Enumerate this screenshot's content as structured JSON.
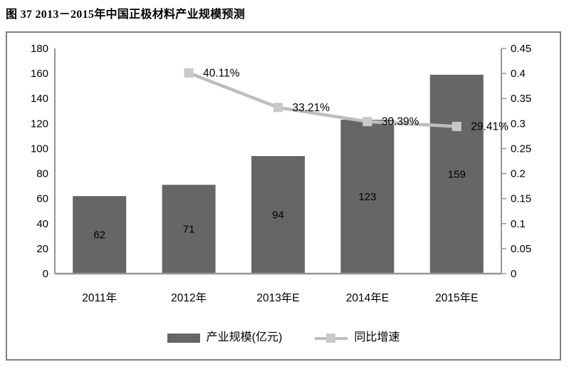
{
  "title": "图 37 2013－2015年中国正极材料产业规模预测",
  "chart_data": {
    "type": "bar+line",
    "categories": [
      "2011年",
      "2012年",
      "2013年E",
      "2014年E",
      "2015年E"
    ],
    "bar_series": {
      "name": "产业规模(亿元)",
      "values": [
        62,
        71,
        94,
        123,
        159
      ],
      "labels": [
        "62",
        "71",
        "94",
        "123",
        "159"
      ],
      "color": "#666666"
    },
    "line_series": {
      "name": "同比增速",
      "values": [
        null,
        0.4011,
        0.3321,
        0.3039,
        0.2941
      ],
      "labels": [
        null,
        "40.11%",
        "33.21%",
        "30.39%",
        "29.41%"
      ],
      "color": "#BDBDBD",
      "marker_color": "#C9C9C9"
    },
    "left_axis": {
      "min": 0,
      "max": 180,
      "step": 20,
      "ticks": [
        "180",
        "160",
        "140",
        "120",
        "100",
        "80",
        "60",
        "40",
        "20",
        "0"
      ]
    },
    "right_axis": {
      "min": 0,
      "max": 0.45,
      "step": 0.05,
      "ticks": [
        "0.45",
        "0.4",
        "0.35",
        "0.3",
        "0.25",
        "0.2",
        "0.15",
        "0.1",
        "0.05",
        "0"
      ]
    },
    "legend_position": "bottom",
    "grid": false,
    "axis_color": "#969696",
    "border_color": "#808080",
    "text_color": "#000000"
  }
}
